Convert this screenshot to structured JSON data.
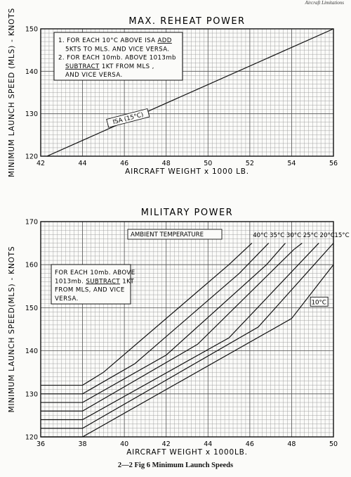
{
  "header_corner": "Aircraft Limitations",
  "figure_caption": "2—2 Fig 6  Minimum Launch Speeds",
  "chart_data": [
    {
      "type": "line",
      "title": "MAX. REHEAT POWER",
      "xlabel": "AIRCRAFT WEIGHT x 1000 LB.",
      "ylabel": "MINIMUM LAUNCH SPEED (MLS) - KNOTS",
      "xlim": [
        42,
        56
      ],
      "ylim": [
        120,
        150
      ],
      "x_ticks": [
        42,
        44,
        46,
        48,
        50,
        52,
        54,
        56
      ],
      "y_ticks": [
        120,
        130,
        140,
        150
      ],
      "grid": true,
      "series": [
        {
          "name": "ISA (15°C)",
          "x": [
            42.3,
            56
          ],
          "y": [
            120,
            150
          ]
        }
      ],
      "notes": [
        {
          "num": "1.",
          "parts": [
            [
              "FOR EACH 10°C ABOVE ISA ",
              ""
            ],
            [
              "ADD",
              "u"
            ]
          ]
        },
        {
          "num": "",
          "parts": [
            [
              "5KTS TO MLS. AND VICE VERSA.",
              ""
            ]
          ]
        },
        {
          "num": "2.",
          "parts": [
            [
              "FOR EACH 10mb. ABOVE 1013mb",
              ""
            ]
          ]
        },
        {
          "num": "",
          "parts": [
            [
              "SUBTRACT",
              "u"
            ],
            [
              " 1KT FROM MLS ,",
              ""
            ]
          ]
        },
        {
          "num": "",
          "parts": [
            [
              "AND VICE VERSA.",
              ""
            ]
          ]
        }
      ]
    },
    {
      "type": "line",
      "title": "MILITARY POWER",
      "xlabel": "AIRCRAFT WEIGHT x 1000LB.",
      "ylabel": "MINIMUM LAUNCH SPEED(MLS) - KNOTS",
      "xlim": [
        36,
        50
      ],
      "ylim": [
        120,
        170
      ],
      "x_ticks": [
        36,
        38,
        40,
        42,
        44,
        46,
        48,
        50
      ],
      "y_ticks": [
        120,
        130,
        140,
        150,
        160,
        170
      ],
      "grid": true,
      "legend_title": "AMBIENT TEMPERATURE",
      "series": [
        {
          "name": "40°C",
          "x": [
            36,
            38,
            39,
            45,
            46.1
          ],
          "y": [
            132,
            132,
            135,
            160,
            165
          ]
        },
        {
          "name": "35°C",
          "x": [
            36,
            38,
            40.5,
            45.5,
            46.9
          ],
          "y": [
            130,
            130,
            137,
            158,
            165
          ]
        },
        {
          "name": "30°C",
          "x": [
            36,
            38,
            42,
            46.8,
            47.7
          ],
          "y": [
            128,
            128,
            139,
            160,
            165
          ]
        },
        {
          "name": "25°C",
          "x": [
            36,
            38,
            43.5,
            48.1,
            48.5
          ],
          "y": [
            126,
            126,
            141.5,
            163.5,
            165
          ]
        },
        {
          "name": "20°C",
          "x": [
            36,
            38,
            45,
            49.3
          ],
          "y": [
            124,
            124,
            143,
            165
          ]
        },
        {
          "name": "15°C",
          "x": [
            36,
            38,
            46.4,
            50
          ],
          "y": [
            122,
            122,
            145.5,
            165
          ]
        },
        {
          "name": "10°C",
          "x": [
            36,
            38,
            48,
            50
          ],
          "y": [
            120,
            120,
            147.5,
            160
          ]
        }
      ],
      "notes": [
        {
          "parts": [
            [
              "FOR EACH 10mb. ABOVE",
              ""
            ]
          ]
        },
        {
          "parts": [
            [
              "1013mb. ",
              ""
            ],
            [
              "SUBTRACT",
              "u"
            ],
            [
              " 1KT",
              ""
            ]
          ]
        },
        {
          "parts": [
            [
              "FROM MLS, AND VICE",
              ""
            ]
          ]
        },
        {
          "parts": [
            [
              "VERSA.",
              ""
            ]
          ]
        }
      ]
    }
  ]
}
